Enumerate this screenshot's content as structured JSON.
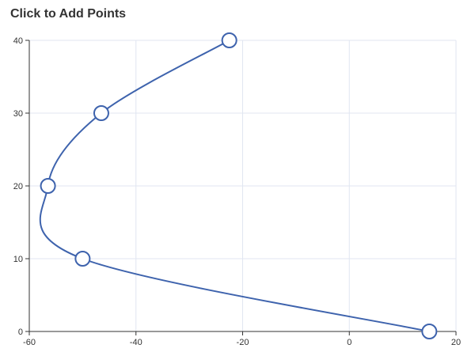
{
  "chart_data": {
    "type": "line",
    "title": "Click to Add Points",
    "smooth": true,
    "xlim": [
      -60,
      20
    ],
    "ylim": [
      0,
      40
    ],
    "x_ticks": [
      -60,
      -40,
      -20,
      0,
      20
    ],
    "y_ticks": [
      0,
      10,
      20,
      30,
      40
    ],
    "grid": true,
    "series": [
      {
        "color": "#3e63ad",
        "points": [
          {
            "x": 15,
            "y": 0
          },
          {
            "x": -50,
            "y": 10
          },
          {
            "x": -56.5,
            "y": 20
          },
          {
            "x": -46.5,
            "y": 30
          },
          {
            "x": -22.5,
            "y": 40
          }
        ]
      }
    ]
  }
}
